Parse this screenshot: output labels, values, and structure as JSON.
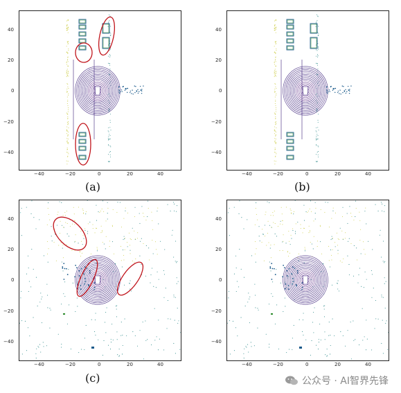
{
  "panels": [
    {
      "caption": "(a)",
      "x_ticks": [
        "−40",
        "−20",
        "0",
        "20",
        "40"
      ],
      "y_ticks": [
        "40",
        "20",
        "0",
        "−20",
        "−40"
      ],
      "highlight_circles": 4
    },
    {
      "caption": "(b)",
      "x_ticks": [
        "−40",
        "−20",
        "0",
        "20",
        "40"
      ],
      "y_ticks": [
        "40",
        "20",
        "0",
        "−20",
        "−40"
      ],
      "highlight_circles": 0
    },
    {
      "caption": "(c)",
      "x_ticks": [
        "−40",
        "−20",
        "0",
        "20",
        "40"
      ],
      "y_ticks": [
        "40",
        "20",
        "0",
        "−20",
        "−40"
      ],
      "highlight_circles": 3
    },
    {
      "caption": "(d)",
      "x_ticks": [
        "−40",
        "−20",
        "0",
        "20",
        "40"
      ],
      "y_ticks": [
        "40",
        "20",
        "0",
        "−20",
        "−40"
      ],
      "highlight_circles": 0
    }
  ],
  "watermark": {
    "text": "公众号 · AI智界先锋",
    "icon": "wechat-icon"
  },
  "colors": {
    "ring": "#3b1f7a",
    "ring_inner": "#5b2a86",
    "box": "#1a5a8a",
    "highlight": "#c0141b",
    "car_green": "#2b8a2b",
    "points_yellow": "#c9c93a",
    "points_teal": "#2d8a8a"
  }
}
